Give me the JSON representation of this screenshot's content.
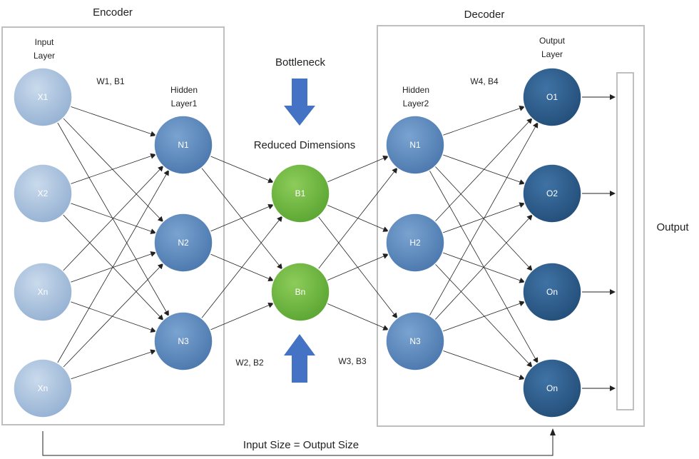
{
  "encoder": {
    "title": "Encoder",
    "input_layer_label": [
      "Input",
      "Layer"
    ],
    "hidden_layer_label": [
      "Hidden",
      "Layer1"
    ],
    "weights_1": "W1, B1",
    "weights_2": "W2, B2",
    "input_nodes": [
      "X1",
      "X2",
      "Xn",
      "Xn"
    ],
    "hidden_nodes": [
      "N1",
      "N2",
      "N3"
    ]
  },
  "bottleneck": {
    "title": "Bottleneck",
    "subtitle": "Reduced Dimensions",
    "nodes": [
      "B1",
      "Bn"
    ]
  },
  "decoder": {
    "title": "Decoder",
    "hidden_layer_label": [
      "Hidden",
      "Layer2"
    ],
    "output_layer_label": [
      "Output",
      "Layer"
    ],
    "weights_3": "W3, B3",
    "weights_4": "W4, B4",
    "hidden_nodes": [
      "N1",
      "H2",
      "N3"
    ],
    "output_nodes": [
      "O1",
      "O2",
      "On",
      "On"
    ]
  },
  "output_label": "Output",
  "footer_label": "Input Size = Output Size",
  "colors": {
    "input_node": "#a9c2dd",
    "hidden_node": "#5b88bd",
    "bottleneck_node": "#6fb73f",
    "output_node": "#2c5d8c",
    "arrow": "#4472c4"
  }
}
